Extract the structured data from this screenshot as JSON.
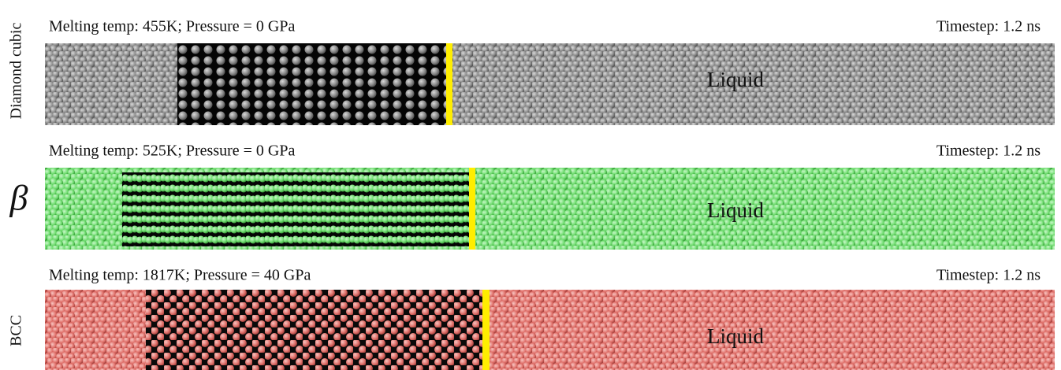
{
  "panels": [
    {
      "side_label": "Diamond cubic",
      "melting_label": "Melting temp: 455K; Pressure = 0 GPa",
      "timestep_label": "Timestep: 1.2 ns",
      "phase_label": "Liquid"
    },
    {
      "side_label": "β",
      "melting_label": "Melting temp: 525K; Pressure = 0 GPa",
      "timestep_label": "Timestep: 1.2 ns",
      "phase_label": "Liquid"
    },
    {
      "side_label": "BCC",
      "melting_label": "Melting temp: 1817K; Pressure = 40 GPa",
      "timestep_label": "Timestep: 1.2 ns",
      "phase_label": "Liquid"
    }
  ]
}
